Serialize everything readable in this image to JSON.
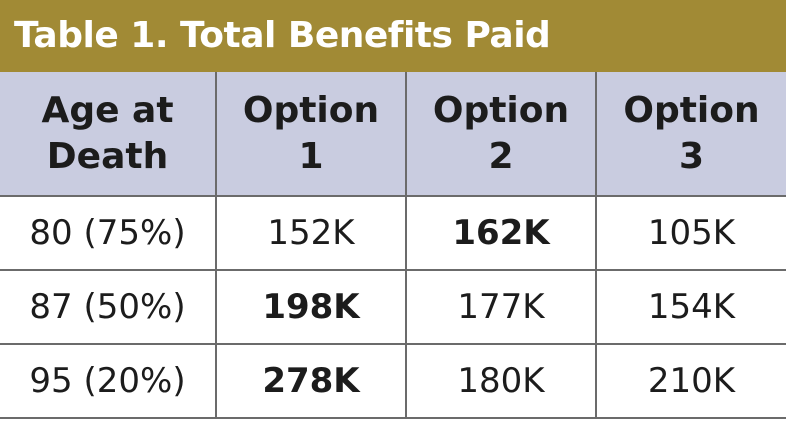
{
  "title": "Table 1. Total Benefits Paid",
  "header": {
    "col0_line1": "Age at",
    "col0_line2": "Death",
    "col1_line1": "Option",
    "col1_line2": "1",
    "col2_line1": "Option",
    "col2_line2": "2",
    "col3_line1": "Option",
    "col3_line2": "3"
  },
  "rows": [
    {
      "age": "80 (75%)",
      "opt1": "152K",
      "opt2": "162K",
      "opt3": "105K",
      "bold": "opt2"
    },
    {
      "age": "87 (50%)",
      "opt1": "198K",
      "opt2": "177K",
      "opt3": "154K",
      "bold": "opt1"
    },
    {
      "age": "95 (20%)",
      "opt1": "278K",
      "opt2": "180K",
      "opt3": "210K",
      "bold": "opt1"
    }
  ],
  "colors": {
    "title_bar": "#a18a35",
    "header_bg": "#c9cce0",
    "grid_lines": "#6b6b6b"
  }
}
